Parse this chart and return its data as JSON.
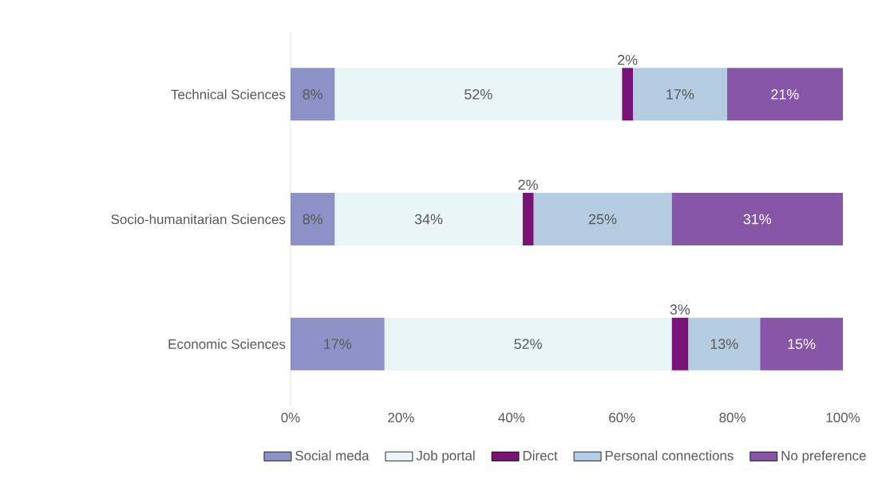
{
  "chart_data": {
    "type": "bar",
    "orientation": "horizontal",
    "stacked": true,
    "categories": [
      "Technical Sciences",
      "Socio-humanitarian Sciences",
      "Economic Sciences"
    ],
    "series": [
      {
        "name": "Social meda",
        "color": "#8c92c6",
        "values": [
          8,
          8,
          17
        ],
        "value_labels": [
          "8%",
          "8%",
          "17%"
        ]
      },
      {
        "name": "Job portal",
        "color": "#eaf5f8",
        "values": [
          52,
          34,
          52
        ],
        "value_labels": [
          "52%",
          "34%",
          "52%"
        ]
      },
      {
        "name": "Direct",
        "color": "#7a1377",
        "values": [
          2,
          2,
          3
        ],
        "value_labels": [
          "2%",
          "2%",
          "3%"
        ]
      },
      {
        "name": "Personal connections",
        "color": "#b3cce2",
        "values": [
          17,
          25,
          13
        ],
        "value_labels": [
          "17%",
          "25%",
          "13%"
        ]
      },
      {
        "name": "No preference",
        "color": "#8856a7",
        "values": [
          21,
          31,
          15
        ],
        "value_labels": [
          "21%",
          "31%",
          "15%"
        ]
      }
    ],
    "xlim": [
      0,
      100
    ],
    "xticks": [
      {
        "value": 0,
        "label": "0%"
      },
      {
        "value": 20,
        "label": "20%"
      },
      {
        "value": 40,
        "label": "40%"
      },
      {
        "value": 60,
        "label": "60%"
      },
      {
        "value": 80,
        "label": "80%"
      },
      {
        "value": 100,
        "label": "100%"
      }
    ],
    "grid": false,
    "legend": "bottom"
  }
}
